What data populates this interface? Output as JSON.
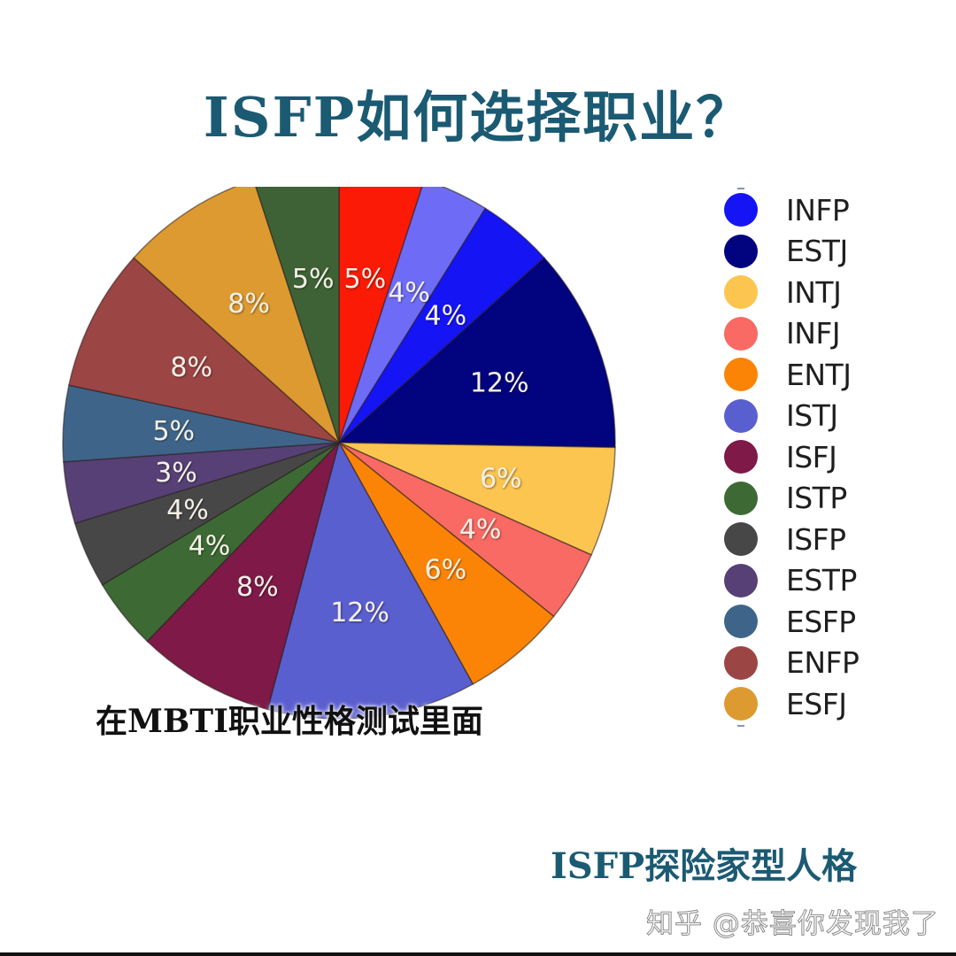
{
  "header": {
    "title": "ISFP如何选择职业？"
  },
  "subtitle": "在MBTI职业性格测试里面",
  "footer": {
    "tag": "ISFP探险家型人格",
    "watermark": "知乎 @恭喜你发现我了"
  },
  "legend": {
    "items": [
      {
        "label": "INFP",
        "color": "#1414f5"
      },
      {
        "label": "ESTJ",
        "color": "#02037f"
      },
      {
        "label": "INTJ",
        "color": "#fcc550"
      },
      {
        "label": "INFJ",
        "color": "#f86a63"
      },
      {
        "label": "ENTJ",
        "color": "#fb8406"
      },
      {
        "label": "ISTJ",
        "color": "#5a5fd0"
      },
      {
        "label": "ISFJ",
        "color": "#7e1948"
      },
      {
        "label": "ISTP",
        "color": "#3d6a34"
      },
      {
        "label": "ISFP",
        "color": "#474747"
      },
      {
        "label": "ESTP",
        "color": "#574075"
      },
      {
        "label": "ESFP",
        "color": "#3e6589"
      },
      {
        "label": "ENFP",
        "color": "#9c4545"
      },
      {
        "label": "ESFJ",
        "color": "#dd9a30"
      }
    ]
  },
  "chart_data": {
    "type": "pie",
    "title": "ISFP如何选择职业？",
    "subtitle": "在MBTI职业性格测试里面",
    "legend_position": "right",
    "start_angle": 0,
    "direction": "clockwise",
    "slices": [
      {
        "label": "",
        "value": 5,
        "display": "5%",
        "color": "#fb1a06",
        "start": 0,
        "end": 18,
        "text_color": "#f7c9c0"
      },
      {
        "label": "",
        "value": 4,
        "display": "4%",
        "color": "#6e6cf6",
        "start": 18,
        "end": 32
      },
      {
        "label": "INFP",
        "value": 4,
        "display": "4%",
        "color": "#1414f5",
        "start": 32,
        "end": 48
      },
      {
        "label": "ESTJ",
        "value": 12,
        "display": "12%",
        "color": "#02037f",
        "start": 48,
        "end": 91
      },
      {
        "label": "INTJ",
        "value": 6,
        "display": "6%",
        "color": "#fcc550",
        "start": 91,
        "end": 114
      },
      {
        "label": "INFJ",
        "value": 4,
        "display": "4%",
        "color": "#f86a63",
        "start": 114,
        "end": 129
      },
      {
        "label": "ENTJ",
        "value": 6,
        "display": "6%",
        "color": "#fb8406",
        "start": 129,
        "end": 151
      },
      {
        "label": "ISTJ",
        "value": 12,
        "display": "12%",
        "color": "#5a5fd0",
        "start": 151,
        "end": 195
      },
      {
        "label": "ISFJ",
        "value": 8,
        "display": "8%",
        "color": "#7e1948",
        "start": 195,
        "end": 224
      },
      {
        "label": "ISTP",
        "value": 4,
        "display": "4%",
        "color": "#3d6a34",
        "start": 224,
        "end": 239
      },
      {
        "label": "ISFP",
        "value": 4,
        "display": "4%",
        "color": "#474747",
        "start": 239,
        "end": 253
      },
      {
        "label": "ESTP",
        "value": 3,
        "display": "3%",
        "color": "#574075",
        "start": 253,
        "end": 266
      },
      {
        "label": "ESFP",
        "value": 5,
        "display": "5%",
        "color": "#3e6589",
        "start": 266,
        "end": 282
      },
      {
        "label": "ENFP",
        "value": 8,
        "display": "8%",
        "color": "#9c4545",
        "start": 282,
        "end": 312
      },
      {
        "label": "ESFJ",
        "value": 8,
        "display": "8%",
        "color": "#dd9a30",
        "start": 312,
        "end": 342
      },
      {
        "label": "",
        "value": 5,
        "display": "5%",
        "color": "#3e6236",
        "start": 342,
        "end": 360
      }
    ]
  }
}
